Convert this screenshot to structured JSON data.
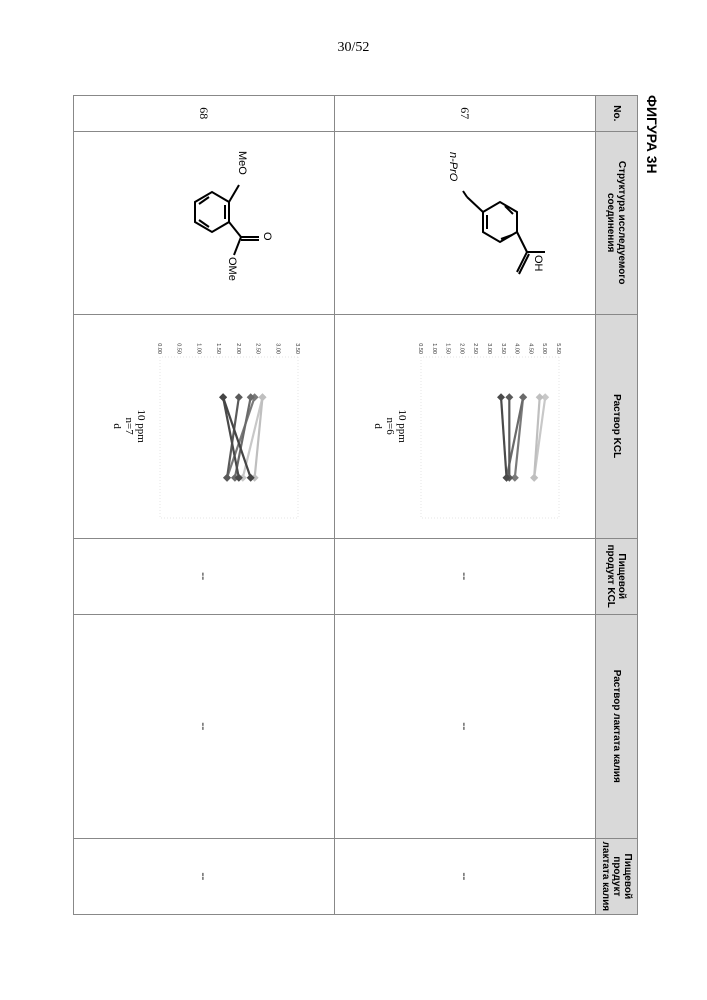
{
  "page": {
    "number": "30/52",
    "figure_label": "ФИГУРА 3Н"
  },
  "table": {
    "headers": {
      "no": "No.",
      "structure": "Структура исследуемого соединения",
      "kcl_solution": "Раствор KCL",
      "kcl_food": "Пищевой продукт KCL",
      "lactate_solution": "Раствор лактата калия",
      "lactate_food": "Пищевой продукт лактата калия"
    },
    "rows": [
      {
        "no": "67",
        "structure_label_top": "OH",
        "structure_label_bottom": "n-PrO",
        "chart": {
          "caption_line1": "10 ppm",
          "caption_line2": "n=6",
          "caption_line3": "d",
          "y_ticks": [
            "5.50",
            "5.00",
            "4.50",
            "4.00",
            "3.50",
            "3.00",
            "2.50",
            "2.00",
            "1.50",
            "1.00",
            "0.50"
          ],
          "lines": [
            {
              "x": [
                1,
                2
              ],
              "y": [
                5.0,
                4.6
              ],
              "color": "#c8c8c8"
            },
            {
              "x": [
                1,
                2
              ],
              "y": [
                4.8,
                4.6
              ],
              "color": "#bfbfbf"
            },
            {
              "x": [
                1,
                2
              ],
              "y": [
                4.2,
                3.9
              ],
              "color": "#7a7a7a"
            },
            {
              "x": [
                1,
                2
              ],
              "y": [
                4.2,
                3.6
              ],
              "color": "#6a6a6a"
            },
            {
              "x": [
                1,
                2
              ],
              "y": [
                3.7,
                3.7
              ],
              "color": "#5a5a5a"
            },
            {
              "x": [
                1,
                2
              ],
              "y": [
                3.4,
                3.6
              ],
              "color": "#4a4a4a"
            }
          ],
          "y_domain": [
            0.5,
            5.5
          ]
        },
        "kcl_food": "--",
        "lactate_solution": "--",
        "lactate_food": "--"
      },
      {
        "no": "68",
        "structure_label_top": "OMe",
        "structure_label_bottom": "MeO",
        "chart": {
          "caption_line1": "10 ppm",
          "caption_line2": "n=7",
          "caption_line3": "d",
          "y_ticks": [
            "3.50",
            "3.00",
            "2.50",
            "2.00",
            "1.50",
            "1.00",
            "0.50",
            "0.00"
          ],
          "lines": [
            {
              "x": [
                1,
                2
              ],
              "y": [
                2.6,
                2.1
              ],
              "color": "#c8c8c8"
            },
            {
              "x": [
                1,
                2
              ],
              "y": [
                2.6,
                2.4
              ],
              "color": "#bfbfbf"
            },
            {
              "x": [
                1,
                2
              ],
              "y": [
                2.4,
                1.7
              ],
              "color": "#7a7a7a"
            },
            {
              "x": [
                1,
                2
              ],
              "y": [
                2.3,
                1.9
              ],
              "color": "#6a6a6a"
            },
            {
              "x": [
                1,
                2
              ],
              "y": [
                2.0,
                1.7
              ],
              "color": "#5a5a5a"
            },
            {
              "x": [
                1,
                2
              ],
              "y": [
                1.6,
                2.0
              ],
              "color": "#4a4a4a"
            },
            {
              "x": [
                1,
                2
              ],
              "y": [
                1.6,
                2.3
              ],
              "color": "#454545"
            }
          ],
          "y_domain": [
            0,
            3.5
          ]
        },
        "kcl_food": "--",
        "lactate_solution": "--",
        "lactate_food": "--"
      }
    ]
  }
}
